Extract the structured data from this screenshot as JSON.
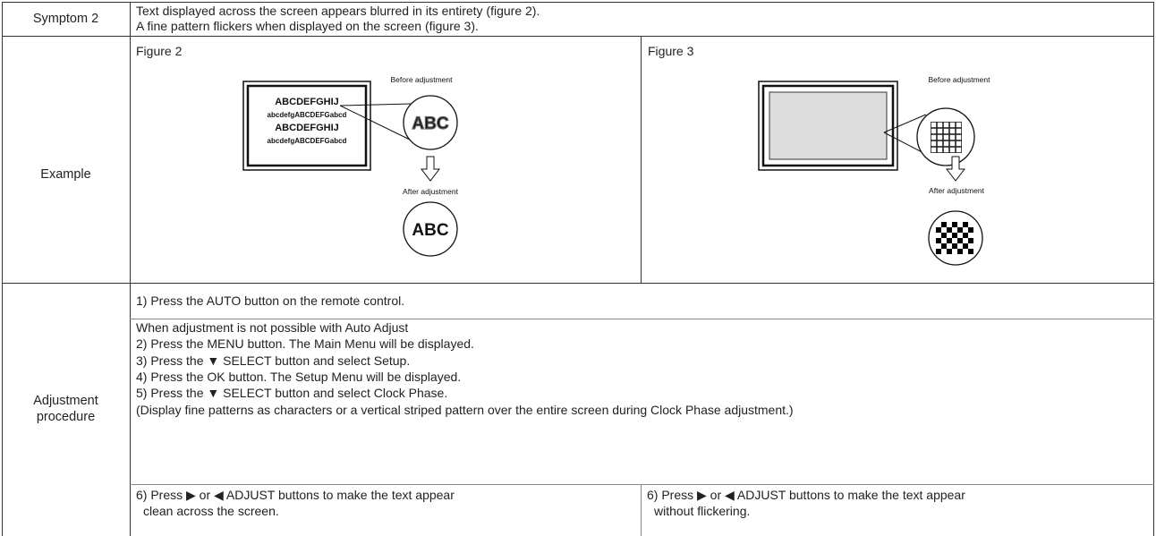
{
  "symptom": {
    "label": "Symptom 2",
    "lines": [
      "Text displayed across the screen appears blurred in its entirety (figure 2).",
      "A fine pattern flickers when displayed on the screen (figure 3)."
    ]
  },
  "example": {
    "label": "Example",
    "figures": [
      {
        "title": "Figure 2",
        "sample_text": [
          "ABCDEFGHIJ",
          "abcdefgABCDEFGabcd",
          "ABCDEFGHIJ",
          "abcdefgABCDEFGabcd"
        ],
        "before_label": "Before adjustment",
        "before_text": "ABC",
        "after_label": "After adjustment",
        "after_text": "ABC"
      },
      {
        "title": "Figure 3",
        "before_label": "Before adjustment",
        "after_label": "After adjustment"
      }
    ]
  },
  "procedure": {
    "label": [
      "Adjustment",
      "procedure"
    ],
    "step1": "1) Press the AUTO button on the remote control.",
    "manual": {
      "heading": "When adjustment is not possible with Auto Adjust",
      "steps": [
        "2) Press the MENU button. The Main Menu will be displayed.",
        "3) Press the ▼ SELECT button and select Setup.",
        "4) Press the OK button. The Setup Menu will be displayed.",
        "5) Press the ▼ SELECT button and select Clock Phase."
      ],
      "note": "(Display fine patterns as characters or a vertical striped pattern over the entire screen during Clock Phase adjustment.)"
    },
    "final": [
      [
        "6) Press ▶ or ◀ ADJUST buttons to make the text appear",
        "clean across the screen."
      ],
      [
        "6) Press ▶ or ◀ ADJUST buttons to make the text appear",
        "without flickering."
      ]
    ]
  }
}
